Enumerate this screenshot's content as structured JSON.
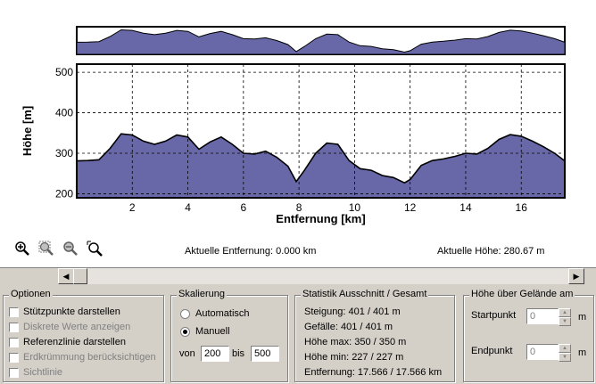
{
  "chart_data": {
    "type": "area",
    "title": "",
    "xlabel": "Entfernung [km]",
    "ylabel": "Höhe [m]",
    "xlim": [
      0,
      17.566
    ],
    "ylim": [
      190,
      520
    ],
    "xticks": [
      2,
      4,
      6,
      8,
      10,
      12,
      14,
      16
    ],
    "yticks": [
      200,
      300,
      400,
      500
    ],
    "grid": true,
    "x": [
      0,
      0.4,
      0.8,
      1.2,
      1.6,
      2.0,
      2.4,
      2.8,
      3.2,
      3.6,
      4.0,
      4.4,
      4.8,
      5.2,
      5.6,
      6.0,
      6.4,
      6.8,
      7.2,
      7.6,
      7.9,
      8.2,
      8.6,
      9.0,
      9.4,
      9.8,
      10.2,
      10.6,
      11.0,
      11.4,
      11.8,
      12.0,
      12.4,
      12.8,
      13.2,
      13.6,
      14.0,
      14.4,
      14.8,
      15.2,
      15.6,
      16.0,
      16.4,
      16.8,
      17.2,
      17.566
    ],
    "y": [
      281,
      282,
      284,
      312,
      348,
      345,
      330,
      322,
      330,
      345,
      340,
      310,
      328,
      340,
      322,
      300,
      298,
      305,
      290,
      268,
      230,
      258,
      300,
      325,
      322,
      282,
      262,
      258,
      245,
      240,
      227,
      235,
      270,
      282,
      286,
      292,
      300,
      298,
      312,
      334,
      346,
      342,
      330,
      316,
      300,
      281
    ],
    "series": [
      {
        "name": "",
        "color": "#6868a8"
      }
    ]
  },
  "toolbar": {
    "tools": [
      {
        "name": "zoom-in-icon"
      },
      {
        "name": "zoom-region-icon"
      },
      {
        "name": "zoom-out-icon"
      },
      {
        "name": "zoom-reset-icon"
      }
    ]
  },
  "status": {
    "entfernung": "Aktuelle Entfernung: 0.000 km",
    "hoehe": "Aktuelle Höhe: 280.67 m"
  },
  "optionen": {
    "title": "Optionen",
    "items": [
      {
        "label": "Stützpunkte darstellen",
        "checked": false,
        "enabled": true
      },
      {
        "label": "Diskrete Werte anzeigen",
        "checked": false,
        "enabled": false
      },
      {
        "label": "Referenzlinie darstellen",
        "checked": false,
        "enabled": true
      },
      {
        "label": "Erdkrümmung berücksichtigen",
        "checked": false,
        "enabled": false
      },
      {
        "label": "Sichtlinie",
        "checked": false,
        "enabled": false
      }
    ]
  },
  "skalierung": {
    "title": "Skalierung",
    "automatisch": "Automatisch",
    "manuell": "Manuell",
    "von_label": "von",
    "von": "200",
    "bis_label": "bis",
    "bis": "500"
  },
  "statistik": {
    "title": "Statistik  Ausschnitt / Gesamt",
    "lines": [
      "Steigung: 401 / 401 m",
      "Gefälle: 401 / 401 m",
      "Höhe max: 350 / 350 m",
      "Höhe min: 227 / 227 m",
      "Entfernung: 17.566 / 17.566 km"
    ]
  },
  "gelaende": {
    "title": "Höhe über Gelände am",
    "startpunkt_label": "Startpunkt",
    "startpunkt": "0",
    "endpunkt_label": "Endpunkt",
    "endpunkt": "0",
    "unit": "m"
  }
}
